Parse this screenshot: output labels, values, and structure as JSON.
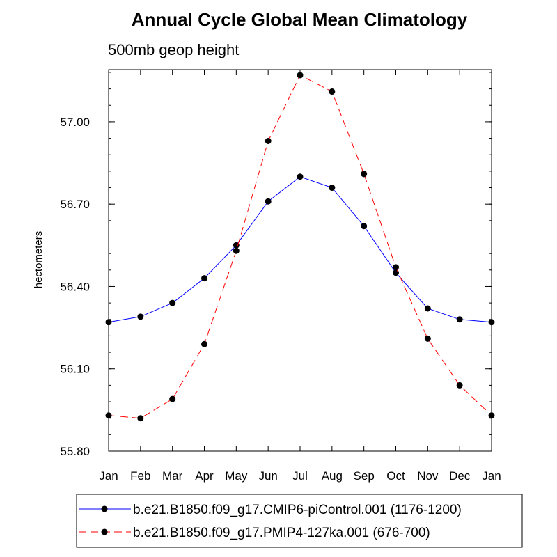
{
  "chart_data": {
    "type": "line",
    "title": "Annual Cycle Global Mean Climatology",
    "subtitle": "500mb geop height",
    "xlabel": "",
    "ylabel": "hectometers",
    "categories": [
      "Jan",
      "Feb",
      "Mar",
      "Apr",
      "May",
      "Jun",
      "Jul",
      "Aug",
      "Sep",
      "Oct",
      "Nov",
      "Dec",
      "Jan"
    ],
    "ylim": [
      55.8,
      57.19
    ],
    "yticks": [
      55.8,
      56.1,
      56.4,
      56.7,
      57.0
    ],
    "ytick_labels": [
      "55.80",
      "56.10",
      "56.40",
      "56.70",
      "57.00"
    ],
    "yminor_step": 0.06,
    "grid": false,
    "legend_position": "bottom",
    "series": [
      {
        "name": "b.e21.B1850.f09_g17.CMIP6-piControl.001 (1176-1200)",
        "color": "#0000ff",
        "line_style": "solid",
        "values": [
          56.27,
          56.29,
          56.34,
          56.43,
          56.55,
          56.71,
          56.8,
          56.76,
          56.62,
          56.45,
          56.32,
          56.28,
          56.27
        ]
      },
      {
        "name": "b.e21.B1850.f09_g17.PMIP4-127ka.001 (676-700)",
        "color": "#ff0000",
        "line_style": "dashed",
        "values": [
          55.93,
          55.92,
          55.99,
          56.19,
          56.53,
          56.93,
          57.17,
          57.11,
          56.81,
          56.47,
          56.21,
          56.04,
          55.93
        ]
      }
    ]
  }
}
